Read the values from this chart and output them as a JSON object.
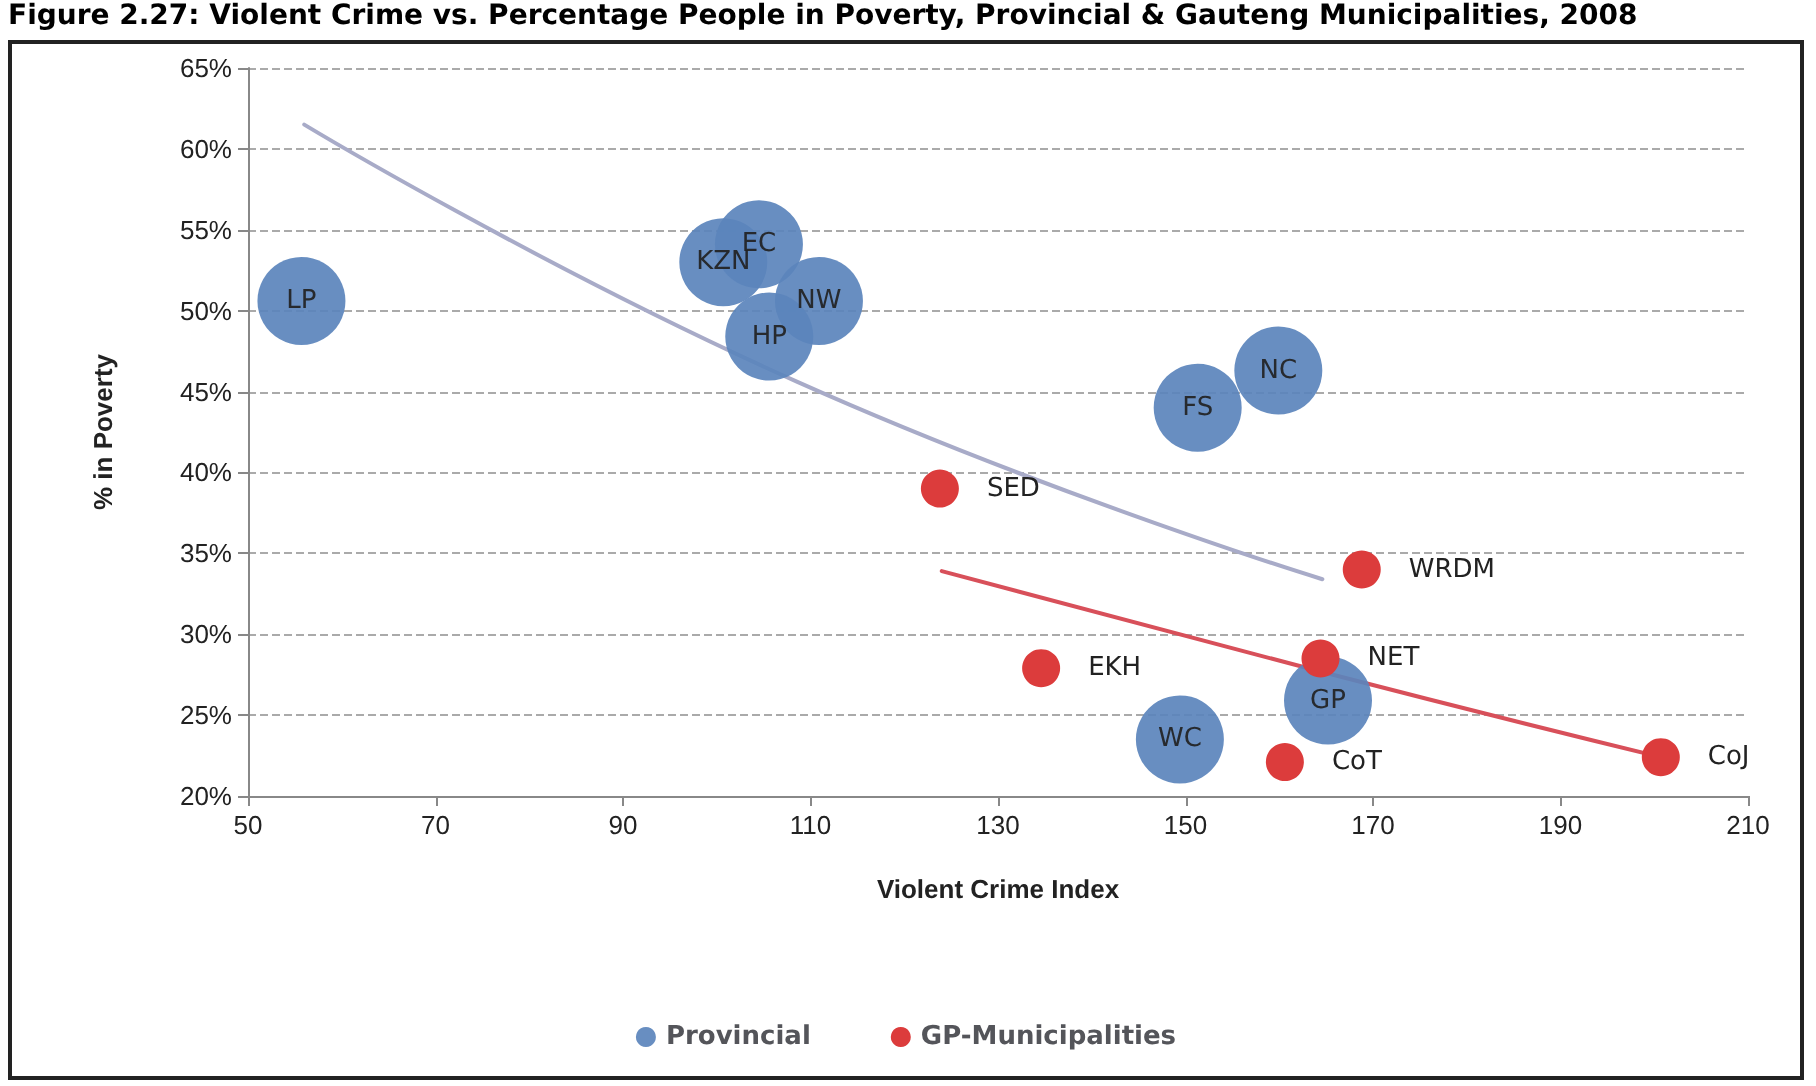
{
  "chart_data": {
    "type": "scatter",
    "title": "Figure 2.27: Violent Crime vs. Percentage People in Poverty, Provincial & Gauteng Municipalities, 2008",
    "xlabel": "Violent Crime Index",
    "ylabel": "% in Poverty",
    "series": [
      {
        "name": "Provincial",
        "marker": "circle",
        "color": "#5b84bc",
        "x": [
          55.7,
          100.7,
          104.5,
          110.9,
          105.6,
          151.3,
          159.9,
          149.4,
          165.2
        ],
        "values": [
          50.6,
          53.0,
          54.1,
          50.6,
          48.4,
          44.0,
          46.3,
          23.5,
          25.9
        ]
      },
      {
        "name": "GP-Municipalities",
        "marker": "circle",
        "color": "#dc3c3c",
        "x": [
          123.8,
          168.8,
          134.6,
          164.4,
          160.6,
          200.7
        ],
        "values": [
          39.0,
          34.0,
          27.9,
          28.5,
          22.1,
          22.4
        ]
      },
      {
        "type": "line",
        "marker": "none",
        "color": "#a8abc8",
        "x": [
          56,
          108.6,
          164.6
        ],
        "values": [
          61.5,
          45.6,
          33.4
        ]
      },
      {
        "type": "line",
        "marker": "none",
        "color": "#d8505a",
        "x": [
          124,
          165,
          200.7
        ],
        "values": [
          33.9,
          27.6,
          22.4
        ]
      }
    ],
    "annotations": [
      {
        "text": "LP",
        "x": 55.7,
        "y": 50.6
      },
      {
        "text": "KZN",
        "x": 100.7,
        "y": 53.0
      },
      {
        "text": "EC",
        "x": 104.5,
        "y": 54.1
      },
      {
        "text": "NW",
        "x": 110.9,
        "y": 50.6
      },
      {
        "text": "HP",
        "x": 105.6,
        "y": 48.4
      },
      {
        "text": "FS",
        "x": 151.3,
        "y": 44.0
      },
      {
        "text": "NC",
        "x": 159.9,
        "y": 46.3
      },
      {
        "text": "WC",
        "x": 149.4,
        "y": 23.5
      },
      {
        "text": "GP",
        "x": 165.2,
        "y": 25.9
      },
      {
        "text": "SED",
        "x": 123.8,
        "y": 39.0
      },
      {
        "text": "WRDM",
        "x": 168.8,
        "y": 34.0
      },
      {
        "text": "EKH",
        "x": 134.6,
        "y": 27.9
      },
      {
        "text": "NET",
        "x": 164.4,
        "y": 28.5
      },
      {
        "text": "CoT",
        "x": 160.6,
        "y": 22.1
      },
      {
        "text": "CoJ",
        "x": 200.7,
        "y": 22.4
      }
    ],
    "xlim": [
      50,
      210
    ],
    "xticks": [
      50,
      70,
      90,
      110,
      130,
      150,
      170,
      190,
      210
    ],
    "ylim": [
      20,
      65
    ],
    "yticks": [
      {
        "value": 20,
        "label": "20%"
      },
      {
        "value": 25,
        "label": "25%"
      },
      {
        "value": 30,
        "label": "30%"
      },
      {
        "value": 35,
        "label": "35%"
      },
      {
        "value": 40,
        "label": "40%"
      },
      {
        "value": 45,
        "label": "45%"
      },
      {
        "value": 50,
        "label": "50%"
      },
      {
        "value": 55,
        "label": "55%"
      },
      {
        "value": 60,
        "label": "60%"
      },
      {
        "value": 65,
        "label": "65%"
      }
    ],
    "grid": "y",
    "legend": "bottom"
  }
}
